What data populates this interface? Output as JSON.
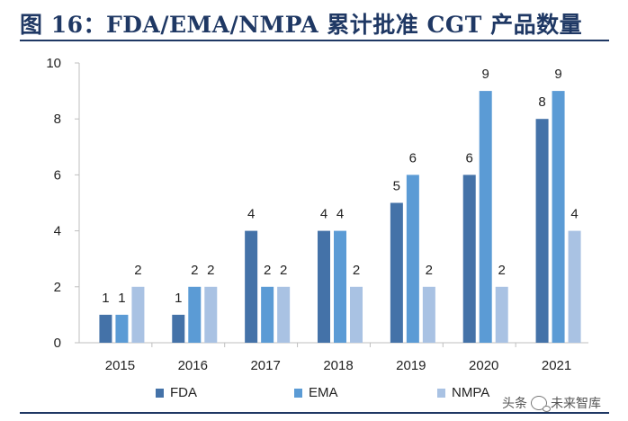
{
  "title": "图 16：FDA/EMA/NMPA 累计批准 CGT 产品数量",
  "watermark": {
    "prefix": "头条",
    "suffix": "未来智库"
  },
  "colors": {
    "FDA": "#4472a8",
    "EMA": "#5b9bd5",
    "NMPA": "#a9c2e3",
    "axis": "#bfbfbf",
    "title": "#1f3864"
  },
  "chart_data": {
    "type": "bar",
    "title": "FDA/EMA/NMPA 累计批准 CGT 产品数量",
    "categories": [
      "2015",
      "2016",
      "2017",
      "2018",
      "2019",
      "2020",
      "2021"
    ],
    "series": [
      {
        "name": "FDA",
        "values": [
          1,
          1,
          4,
          4,
          5,
          6,
          8
        ]
      },
      {
        "name": "EMA",
        "values": [
          1,
          2,
          2,
          4,
          6,
          9,
          9
        ]
      },
      {
        "name": "NMPA",
        "values": [
          2,
          2,
          2,
          2,
          2,
          2,
          4
        ]
      }
    ],
    "ylim": [
      0,
      10
    ],
    "yticks": [
      0,
      2,
      4,
      6,
      8,
      10
    ],
    "xlabel": "",
    "ylabel": "",
    "legend": "bottom"
  }
}
